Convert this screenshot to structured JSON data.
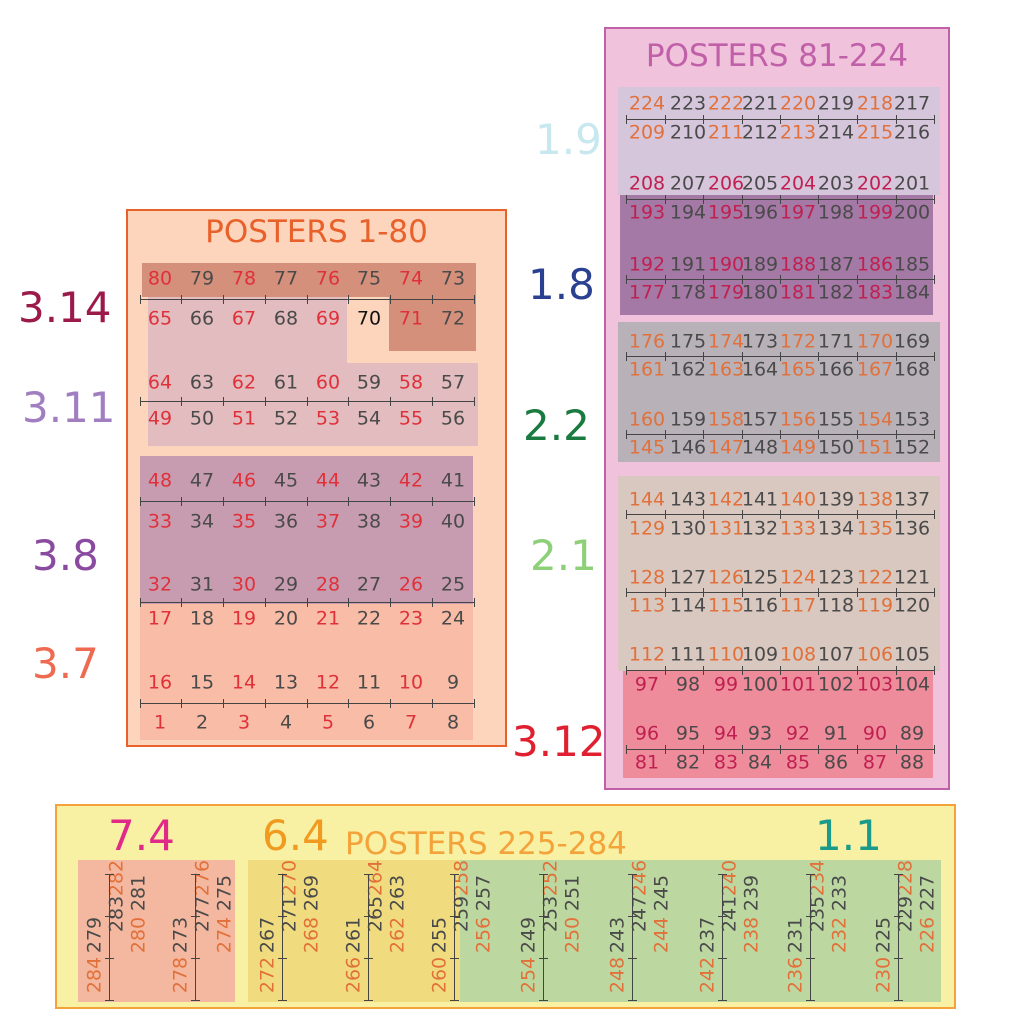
{
  "colors": {
    "odd_number": "#e0303a",
    "orange_number": "#e2703a",
    "dark_number": "#4a4a4a",
    "right_odd_number": "#c02050",
    "right_panel_border": "#c060a8",
    "left_panel_border": "#e8602a",
    "bottom_panel_border": "#f4a33a"
  },
  "panels": {
    "posters_1_80": {
      "title": "POSTERS 1-80"
    },
    "posters_81_224": {
      "title": "POSTERS  81-224"
    },
    "posters_225_284": {
      "title": "POSTERS 225-284"
    }
  },
  "zone_labels": [
    {
      "id": "z314",
      "text": "3.14",
      "color": "#9c1a4a"
    },
    {
      "id": "z311",
      "text": "3.11",
      "color": "#a07ec0"
    },
    {
      "id": "z38",
      "text": "3.8",
      "color": "#8a4aa0"
    },
    {
      "id": "z37",
      "text": "3.7",
      "color": "#ee6a50"
    },
    {
      "id": "z19",
      "text": "1.9",
      "color": "#c8e8f0"
    },
    {
      "id": "z18",
      "text": "1.8",
      "color": "#2a4090"
    },
    {
      "id": "z22",
      "text": "2.2",
      "color": "#1a7a40"
    },
    {
      "id": "z21",
      "text": "2.1",
      "color": "#8ed07a"
    },
    {
      "id": "z312",
      "text": "3.12",
      "color": "#e02030"
    },
    {
      "id": "z74",
      "text": "7.4",
      "color": "#e02a8a"
    },
    {
      "id": "z64",
      "text": "6.4",
      "color": "#f09a20"
    },
    {
      "id": "z11",
      "text": "1.1",
      "color": "#1a9a8a"
    }
  ],
  "left_rows": [
    [
      "80",
      "79",
      "78",
      "77",
      "76",
      "75",
      "74",
      "73"
    ],
    [
      "65",
      "66",
      "67",
      "68",
      "69",
      "70",
      "71",
      "72"
    ],
    [
      "64",
      "63",
      "62",
      "61",
      "60",
      "59",
      "58",
      "57"
    ],
    [
      "49",
      "50",
      "51",
      "52",
      "53",
      "54",
      "55",
      "56"
    ],
    [
      "48",
      "47",
      "46",
      "45",
      "44",
      "43",
      "42",
      "41"
    ],
    [
      "33",
      "34",
      "35",
      "36",
      "37",
      "38",
      "39",
      "40"
    ],
    [
      "32",
      "31",
      "30",
      "29",
      "28",
      "27",
      "26",
      "25"
    ],
    [
      "17",
      "18",
      "19",
      "20",
      "21",
      "22",
      "23",
      "24"
    ],
    [
      "16",
      "15",
      "14",
      "13",
      "12",
      "11",
      "10",
      "9"
    ],
    [
      "1",
      "2",
      "3",
      "4",
      "5",
      "6",
      "7",
      "8"
    ]
  ],
  "right_rows": [
    [
      "224",
      "223",
      "222",
      "221",
      "220",
      "219",
      "218",
      "217"
    ],
    [
      "209",
      "210",
      "211",
      "212",
      "213",
      "214",
      "215",
      "216"
    ],
    [
      "208",
      "207",
      "206",
      "205",
      "204",
      "203",
      "202",
      "201"
    ],
    [
      "193",
      "194",
      "195",
      "196",
      "197",
      "198",
      "199",
      "200"
    ],
    [
      "192",
      "191",
      "190",
      "189",
      "188",
      "187",
      "186",
      "185"
    ],
    [
      "177",
      "178",
      "179",
      "180",
      "181",
      "182",
      "183",
      "184"
    ],
    [
      "176",
      "175",
      "174",
      "173",
      "172",
      "171",
      "170",
      "169"
    ],
    [
      "161",
      "162",
      "163",
      "164",
      "165",
      "166",
      "167",
      "168"
    ],
    [
      "160",
      "159",
      "158",
      "157",
      "156",
      "155",
      "154",
      "153"
    ],
    [
      "145",
      "146",
      "147",
      "148",
      "149",
      "150",
      "151",
      "152"
    ],
    [
      "144",
      "143",
      "142",
      "141",
      "140",
      "139",
      "138",
      "137"
    ],
    [
      "129",
      "130",
      "131",
      "132",
      "133",
      "134",
      "135",
      "136"
    ],
    [
      "128",
      "127",
      "126",
      "125",
      "124",
      "123",
      "122",
      "121"
    ],
    [
      "113",
      "114",
      "115",
      "116",
      "117",
      "118",
      "119",
      "120"
    ],
    [
      "112",
      "111",
      "110",
      "109",
      "108",
      "107",
      "106",
      "105"
    ],
    [
      "97",
      "98",
      "99",
      "100",
      "101",
      "102",
      "103",
      "104"
    ],
    [
      "96",
      "95",
      "94",
      "93",
      "92",
      "91",
      "90",
      "89"
    ],
    [
      "81",
      "82",
      "83",
      "84",
      "85",
      "86",
      "87",
      "88"
    ]
  ],
  "bottom_columns": [
    [
      "283",
      "282"
    ],
    [
      "284",
      "279"
    ],
    [
      "280",
      "281"
    ],
    [
      "277",
      "276"
    ],
    [
      "278",
      "273"
    ],
    [
      "274",
      "275"
    ],
    [
      "271",
      "270"
    ],
    [
      "272",
      "267"
    ],
    [
      "268",
      "269"
    ],
    [
      "265",
      "264"
    ],
    [
      "266",
      "261"
    ],
    [
      "262",
      "263"
    ],
    [
      "259",
      "258"
    ],
    [
      "260",
      "255"
    ],
    [
      "256",
      "257"
    ],
    [
      "253",
      "252"
    ],
    [
      "254",
      "249"
    ],
    [
      "250",
      "251"
    ],
    [
      "247",
      "246"
    ],
    [
      "248",
      "243"
    ],
    [
      "244",
      "245"
    ],
    [
      "241",
      "240"
    ],
    [
      "242",
      "237"
    ],
    [
      "238",
      "239"
    ],
    [
      "235",
      "234"
    ],
    [
      "236",
      "231"
    ],
    [
      "232",
      "233"
    ],
    [
      "229",
      "228"
    ],
    [
      "230",
      "225"
    ],
    [
      "226",
      "227"
    ]
  ]
}
